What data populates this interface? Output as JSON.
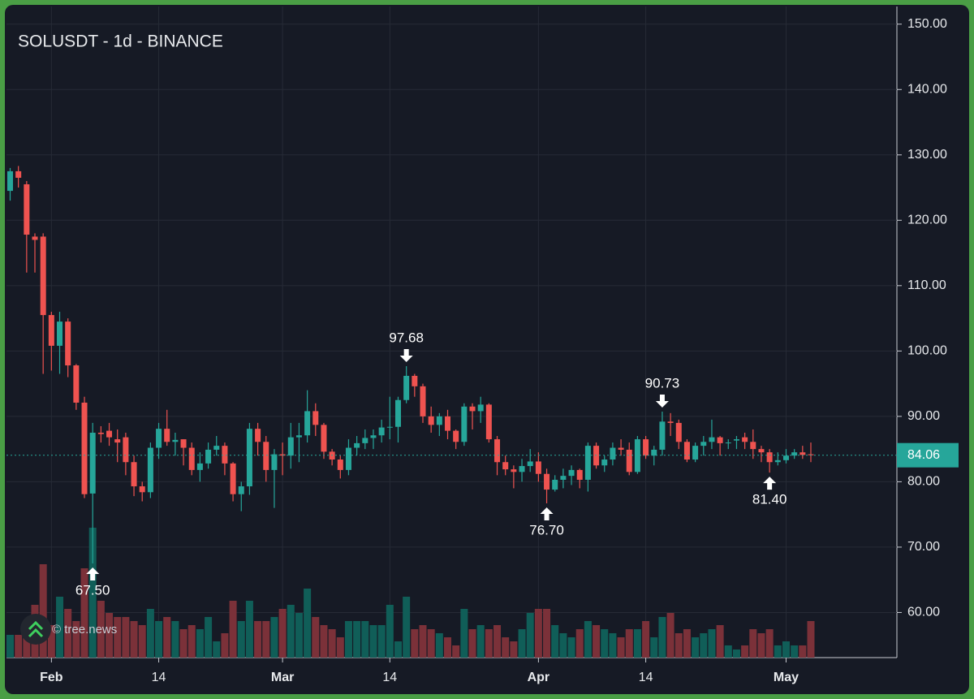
{
  "chart_data": {
    "type": "candlestick",
    "title": "SOLUSDT - 1d - BINANCE",
    "watermark": "© tree.news",
    "up_color": "#26a69a",
    "down_color": "#ef5350",
    "volume_up_color": "#105e58",
    "volume_down_color": "#7b3139",
    "grid": true,
    "ylim": [
      53.1,
      152.7
    ],
    "yticks": [
      {
        "value": 60,
        "label": "60.00"
      },
      {
        "value": 70,
        "label": "70.00"
      },
      {
        "value": 80,
        "label": "80.00"
      },
      {
        "value": 90,
        "label": "90.00"
      },
      {
        "value": 100,
        "label": "100.00"
      },
      {
        "value": 110,
        "label": "110.00"
      },
      {
        "value": 120,
        "label": "120.00"
      },
      {
        "value": 130,
        "label": "130.00"
      },
      {
        "value": 140,
        "label": "140.00"
      },
      {
        "value": 150,
        "label": "150.00"
      }
    ],
    "xticks": [
      {
        "value": 5,
        "label": "Feb"
      },
      {
        "value": 18,
        "label": "14"
      },
      {
        "value": 33,
        "label": "Mar"
      },
      {
        "value": 46,
        "label": "14"
      },
      {
        "value": 64,
        "label": "Apr"
      },
      {
        "value": 77,
        "label": "14"
      },
      {
        "value": 94,
        "label": "May"
      }
    ],
    "open": [
      124.5,
      127.5,
      125.5,
      117.5,
      117.5,
      105.5,
      100.8,
      104.5,
      97.8,
      92.1,
      78.2,
      87.5,
      87.8,
      86.5,
      86.8,
      83,
      79.3,
      78.4,
      85.2,
      88.1,
      86.1,
      86.5,
      85.2,
      81.8,
      82.8,
      84.9,
      85.5,
      82.8,
      78.1,
      79.3,
      88.1,
      86.1,
      81.8,
      84.2,
      84,
      86.8,
      87.1,
      90.8,
      88.7,
      84.6,
      83.4,
      81.8,
      85.2,
      85.9,
      86.7,
      87.1,
      88.3,
      88.4,
      92.5,
      96.2,
      94.6,
      90,
      88.7,
      90,
      87.8,
      86.1,
      91.5,
      90.8,
      91.8,
      86.5,
      83,
      81.9,
      81.5,
      82.4,
      83.1,
      81.2,
      78.8,
      80.3,
      80.9,
      81.8,
      80.3,
      85.5,
      82.5,
      83.4,
      85.2,
      84.9,
      81.5,
      86.5,
      84,
      84.9,
      89.2,
      89,
      86.1,
      83.4,
      85.5,
      86.1,
      86.8,
      85.9,
      86.3,
      86.8,
      86.1,
      85,
      84.5,
      83,
      83.3,
      84,
      84.5,
      84.2
    ],
    "high": [
      128,
      128.3,
      126,
      118,
      118,
      106,
      106,
      105,
      98,
      93,
      89,
      88.5,
      89,
      88,
      87.5,
      84,
      80,
      86,
      89,
      91,
      87.5,
      86.5,
      86,
      84.5,
      86,
      87,
      86,
      83,
      80,
      89,
      89,
      87,
      85,
      86,
      89,
      89,
      94,
      92,
      89,
      85,
      84,
      86.5,
      87,
      88,
      88,
      89.5,
      93,
      93,
      97.68,
      96.5,
      95,
      91.5,
      90.5,
      91,
      88,
      92,
      92,
      93,
      92,
      87,
      84,
      82.5,
      83.5,
      85,
      84.5,
      82,
      81,
      82,
      82.5,
      82,
      86,
      86,
      84,
      86,
      86.5,
      86,
      87,
      87,
      85.5,
      90.73,
      90.5,
      89.5,
      86.5,
      86,
      87,
      89.5,
      87,
      86.5,
      87,
      87.5,
      88,
      85.5,
      85,
      84.5,
      85,
      85,
      85.5,
      86
    ],
    "low": [
      123,
      125,
      112,
      112,
      96.5,
      97,
      96.5,
      96,
      91,
      77.5,
      67.5,
      86,
      85.5,
      83,
      81,
      77.8,
      77,
      77.5,
      83.5,
      85.5,
      84,
      82.5,
      81,
      80,
      82,
      84,
      81,
      77,
      75.5,
      78,
      84,
      80,
      76,
      81,
      82,
      83,
      86,
      87,
      83.5,
      82.5,
      80.5,
      81,
      84,
      85,
      85,
      86,
      86.5,
      86,
      92,
      93,
      89,
      87.5,
      87,
      86.5,
      85,
      85.5,
      88,
      89,
      86,
      81,
      81,
      79,
      80,
      81.5,
      80,
      76.7,
      78.5,
      79,
      79.5,
      79,
      78.5,
      82,
      81.5,
      82.5,
      84,
      81,
      81.2,
      83.5,
      82.5,
      84,
      87,
      85,
      83,
      83,
      84,
      85,
      84,
      85,
      85,
      85,
      83.5,
      83,
      81.4,
      82.5,
      82.8,
      83.5,
      83.5,
      83
    ],
    "close": [
      127.5,
      126.5,
      117.8,
      117,
      105.5,
      100.8,
      104.5,
      97.8,
      92.1,
      78.1,
      87.5,
      87.3,
      86.8,
      86,
      83,
      79.3,
      78.4,
      85.2,
      88.1,
      86.1,
      86.4,
      85.2,
      81.8,
      82.8,
      84.9,
      85.5,
      82.8,
      78.1,
      79.3,
      88.1,
      86.1,
      81.8,
      84.2,
      84,
      86.8,
      87.1,
      90.8,
      88.7,
      84.6,
      83.4,
      81.8,
      85.2,
      85.9,
      86.7,
      87.1,
      88.3,
      88.4,
      92.5,
      96.2,
      94.6,
      90,
      88.7,
      90,
      87.8,
      86.1,
      91.5,
      90.8,
      91.8,
      86.5,
      83,
      81.9,
      81.5,
      82.4,
      83.1,
      81.2,
      78.8,
      80.3,
      80.9,
      81.8,
      80.3,
      85.5,
      82.5,
      83.4,
      85.2,
      84.9,
      81.5,
      86.5,
      84,
      84.9,
      89.2,
      89,
      86.1,
      83.4,
      85.5,
      86.1,
      86.8,
      85.9,
      86,
      86.5,
      86.1,
      85,
      84.5,
      83,
      83.3,
      84,
      84.5,
      84.1,
      84.06
    ],
    "volume": [
      28,
      28,
      45,
      65,
      115,
      40,
      75,
      60,
      45,
      110,
      160,
      70,
      55,
      50,
      50,
      45,
      40,
      60,
      45,
      50,
      45,
      35,
      40,
      35,
      50,
      20,
      30,
      70,
      45,
      70,
      45,
      45,
      50,
      60,
      65,
      55,
      85,
      50,
      40,
      35,
      25,
      45,
      45,
      45,
      40,
      40,
      65,
      20,
      75,
      35,
      40,
      35,
      30,
      25,
      15,
      60,
      35,
      40,
      35,
      40,
      25,
      20,
      35,
      55,
      60,
      60,
      40,
      30,
      25,
      35,
      45,
      40,
      35,
      30,
      25,
      35,
      35,
      45,
      25,
      50,
      55,
      30,
      35,
      25,
      30,
      35,
      40,
      15,
      10,
      15,
      35,
      30,
      35,
      15,
      20,
      15,
      15,
      45
    ],
    "annotations": {
      "values": [
        97.68,
        90.73,
        67.5,
        76.7,
        81.4
      ],
      "value_labels": [
        "97.68",
        "90.73",
        "67.50",
        "76.70",
        "81.40"
      ]
    }
  }
}
